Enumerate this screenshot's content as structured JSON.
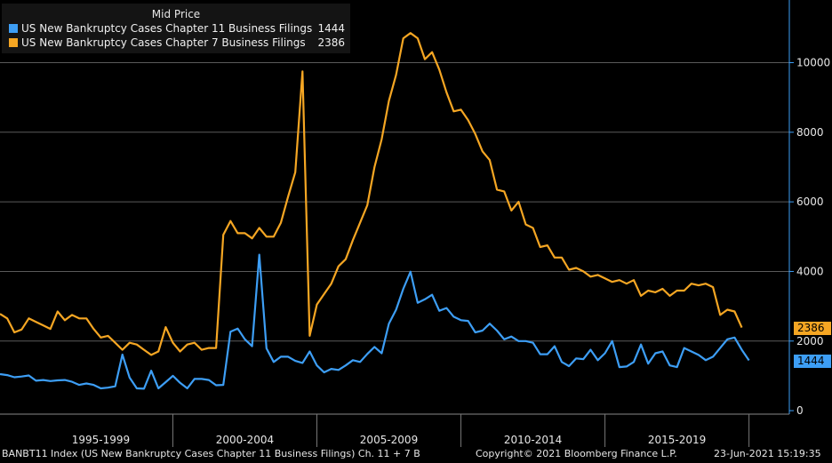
{
  "legend": {
    "title": "Mid Price",
    "items": [
      {
        "label": "US New Bankruptcy Cases Chapter 11 Business Filings",
        "value": "1444",
        "color": "#3d9ef5"
      },
      {
        "label": "US New Bankruptcy Cases Chapter 7 Business Filings",
        "value": "2386",
        "color": "#f5a623"
      }
    ]
  },
  "footer": {
    "ticker": "BANBT11 Index (US New Bankruptcy Cases Chapter 11 Business Filings) Ch. 11 + 7 B",
    "copyright": "Copyright© 2021 Bloomberg Finance L.P.",
    "timestamp": "23-Jun-2021 15:19:35"
  },
  "last_values": {
    "chapter7": "2386",
    "chapter11": "1444"
  },
  "chart_data": {
    "type": "line",
    "title": "",
    "xlabel": "",
    "ylabel": "",
    "x_categories": [
      "1995-1999",
      "2000-2004",
      "2005-2009",
      "2010-2014",
      "2015-2019"
    ],
    "yticks": [
      0,
      2000,
      4000,
      6000,
      8000,
      10000
    ],
    "ylim": [
      -100,
      11800
    ],
    "xlim": [
      1994.0,
      2021.4
    ],
    "grid": true,
    "legend_position": "top-left",
    "series": [
      {
        "name": "US New Bankruptcy Cases Chapter 11 Business Filings",
        "color": "#3d9ef5",
        "points": [
          [
            1994.0,
            1050
          ],
          [
            1994.25,
            1020
          ],
          [
            1994.5,
            960
          ],
          [
            1994.75,
            980
          ],
          [
            1995.0,
            1010
          ],
          [
            1995.25,
            860
          ],
          [
            1995.5,
            880
          ],
          [
            1995.75,
            850
          ],
          [
            1996.0,
            870
          ],
          [
            1996.25,
            880
          ],
          [
            1996.5,
            830
          ],
          [
            1996.75,
            740
          ],
          [
            1997.0,
            780
          ],
          [
            1997.25,
            740
          ],
          [
            1997.5,
            640
          ],
          [
            1997.75,
            660
          ],
          [
            1998.0,
            700
          ],
          [
            1998.25,
            1610
          ],
          [
            1998.5,
            950
          ],
          [
            1998.75,
            640
          ],
          [
            1999.0,
            630
          ],
          [
            1999.25,
            1150
          ],
          [
            1999.5,
            640
          ],
          [
            1999.75,
            820
          ],
          [
            2000.0,
            1000
          ],
          [
            2000.25,
            800
          ],
          [
            2000.5,
            640
          ],
          [
            2000.75,
            910
          ],
          [
            2001.0,
            910
          ],
          [
            2001.25,
            880
          ],
          [
            2001.5,
            730
          ],
          [
            2001.75,
            740
          ],
          [
            2002.0,
            2270
          ],
          [
            2002.25,
            2360
          ],
          [
            2002.5,
            2050
          ],
          [
            2002.75,
            1850
          ],
          [
            2003.0,
            4480
          ],
          [
            2003.25,
            1790
          ],
          [
            2003.5,
            1400
          ],
          [
            2003.75,
            1550
          ],
          [
            2004.0,
            1550
          ],
          [
            2004.25,
            1430
          ],
          [
            2004.5,
            1370
          ],
          [
            2004.75,
            1700
          ],
          [
            2005.0,
            1300
          ],
          [
            2005.25,
            1100
          ],
          [
            2005.5,
            1200
          ],
          [
            2005.75,
            1170
          ],
          [
            2006.0,
            1300
          ],
          [
            2006.25,
            1450
          ],
          [
            2006.5,
            1400
          ],
          [
            2006.75,
            1630
          ],
          [
            2007.0,
            1830
          ],
          [
            2007.25,
            1650
          ],
          [
            2007.5,
            2500
          ],
          [
            2007.75,
            2900
          ],
          [
            2008.0,
            3500
          ],
          [
            2008.25,
            3990
          ],
          [
            2008.5,
            3100
          ],
          [
            2008.75,
            3200
          ],
          [
            2009.0,
            3330
          ],
          [
            2009.25,
            2870
          ],
          [
            2009.5,
            2950
          ],
          [
            2009.75,
            2700
          ],
          [
            2010.0,
            2600
          ],
          [
            2010.25,
            2580
          ],
          [
            2010.5,
            2250
          ],
          [
            2010.75,
            2300
          ],
          [
            2011.0,
            2500
          ],
          [
            2011.25,
            2300
          ],
          [
            2011.5,
            2050
          ],
          [
            2011.75,
            2130
          ],
          [
            2012.0,
            2000
          ],
          [
            2012.25,
            2000
          ],
          [
            2012.5,
            1950
          ],
          [
            2012.75,
            1620
          ],
          [
            2013.0,
            1620
          ],
          [
            2013.25,
            1850
          ],
          [
            2013.5,
            1400
          ],
          [
            2013.75,
            1280
          ],
          [
            2014.0,
            1500
          ],
          [
            2014.25,
            1480
          ],
          [
            2014.5,
            1750
          ],
          [
            2014.75,
            1450
          ],
          [
            2015.0,
            1650
          ],
          [
            2015.25,
            2000
          ],
          [
            2015.5,
            1250
          ],
          [
            2015.75,
            1270
          ],
          [
            2016.0,
            1400
          ],
          [
            2016.25,
            1900
          ],
          [
            2016.5,
            1350
          ],
          [
            2016.75,
            1650
          ],
          [
            2017.0,
            1700
          ],
          [
            2017.25,
            1300
          ],
          [
            2017.5,
            1250
          ],
          [
            2017.75,
            1800
          ],
          [
            2018.0,
            1700
          ],
          [
            2018.25,
            1600
          ],
          [
            2018.5,
            1450
          ],
          [
            2018.75,
            1550
          ],
          [
            2019.0,
            1800
          ],
          [
            2019.25,
            2050
          ],
          [
            2019.5,
            2100
          ],
          [
            2019.75,
            1750
          ],
          [
            2020.0,
            1444
          ]
        ]
      },
      {
        "name": "US New Bankruptcy Cases Chapter 7 Business Filings",
        "color": "#f5a623",
        "points": [
          [
            1994.0,
            2780
          ],
          [
            1994.25,
            2650
          ],
          [
            1994.5,
            2250
          ],
          [
            1994.75,
            2330
          ],
          [
            1995.0,
            2650
          ],
          [
            1995.25,
            2550
          ],
          [
            1995.5,
            2450
          ],
          [
            1995.75,
            2350
          ],
          [
            1996.0,
            2850
          ],
          [
            1996.25,
            2600
          ],
          [
            1996.5,
            2750
          ],
          [
            1996.75,
            2650
          ],
          [
            1997.0,
            2650
          ],
          [
            1997.25,
            2350
          ],
          [
            1997.5,
            2100
          ],
          [
            1997.75,
            2150
          ],
          [
            1998.0,
            1950
          ],
          [
            1998.25,
            1750
          ],
          [
            1998.5,
            1950
          ],
          [
            1998.75,
            1900
          ],
          [
            1999.0,
            1750
          ],
          [
            1999.25,
            1600
          ],
          [
            1999.5,
            1700
          ],
          [
            1999.75,
            2400
          ],
          [
            2000.0,
            1950
          ],
          [
            2000.25,
            1700
          ],
          [
            2000.5,
            1900
          ],
          [
            2000.75,
            1950
          ],
          [
            2001.0,
            1750
          ],
          [
            2001.25,
            1800
          ],
          [
            2001.5,
            1800
          ],
          [
            2001.75,
            5050
          ],
          [
            2002.0,
            5450
          ],
          [
            2002.25,
            5100
          ],
          [
            2002.5,
            5100
          ],
          [
            2002.75,
            4950
          ],
          [
            2003.0,
            5250
          ],
          [
            2003.25,
            5000
          ],
          [
            2003.5,
            5000
          ],
          [
            2003.75,
            5400
          ],
          [
            2004.0,
            6150
          ],
          [
            2004.25,
            6850
          ],
          [
            2004.5,
            9750
          ],
          [
            2004.75,
            2150
          ],
          [
            2005.0,
            3050
          ],
          [
            2005.25,
            3350
          ],
          [
            2005.5,
            3650
          ],
          [
            2005.75,
            4150
          ],
          [
            2006.0,
            4350
          ],
          [
            2006.25,
            4900
          ],
          [
            2006.5,
            5400
          ],
          [
            2006.75,
            5900
          ],
          [
            2007.0,
            7000
          ],
          [
            2007.25,
            7800
          ],
          [
            2007.5,
            8900
          ],
          [
            2007.75,
            9650
          ],
          [
            2008.0,
            10700
          ],
          [
            2008.25,
            10850
          ],
          [
            2008.5,
            10700
          ],
          [
            2008.75,
            10100
          ],
          [
            2009.0,
            10300
          ],
          [
            2009.25,
            9800
          ],
          [
            2009.5,
            9150
          ],
          [
            2009.75,
            8600
          ],
          [
            2010.0,
            8650
          ],
          [
            2010.25,
            8350
          ],
          [
            2010.5,
            7950
          ],
          [
            2010.75,
            7450
          ],
          [
            2011.0,
            7200
          ],
          [
            2011.25,
            6350
          ],
          [
            2011.5,
            6300
          ],
          [
            2011.75,
            5750
          ],
          [
            2012.0,
            6000
          ],
          [
            2012.25,
            5350
          ],
          [
            2012.5,
            5250
          ],
          [
            2012.75,
            4700
          ],
          [
            2013.0,
            4750
          ],
          [
            2013.25,
            4400
          ],
          [
            2013.5,
            4400
          ],
          [
            2013.75,
            4050
          ],
          [
            2014.0,
            4100
          ],
          [
            2014.25,
            4000
          ],
          [
            2014.5,
            3850
          ],
          [
            2014.75,
            3900
          ],
          [
            2015.0,
            3800
          ],
          [
            2015.25,
            3700
          ],
          [
            2015.5,
            3750
          ],
          [
            2015.75,
            3650
          ],
          [
            2016.0,
            3750
          ],
          [
            2016.25,
            3300
          ],
          [
            2016.5,
            3450
          ],
          [
            2016.75,
            3400
          ],
          [
            2017.0,
            3500
          ],
          [
            2017.25,
            3300
          ],
          [
            2017.5,
            3450
          ],
          [
            2017.75,
            3450
          ],
          [
            2018.0,
            3650
          ],
          [
            2018.25,
            3600
          ],
          [
            2018.5,
            3650
          ],
          [
            2018.75,
            3550
          ],
          [
            2019.0,
            2750
          ],
          [
            2019.25,
            2900
          ],
          [
            2019.5,
            2850
          ],
          [
            2019.75,
            2386
          ]
        ]
      }
    ]
  }
}
